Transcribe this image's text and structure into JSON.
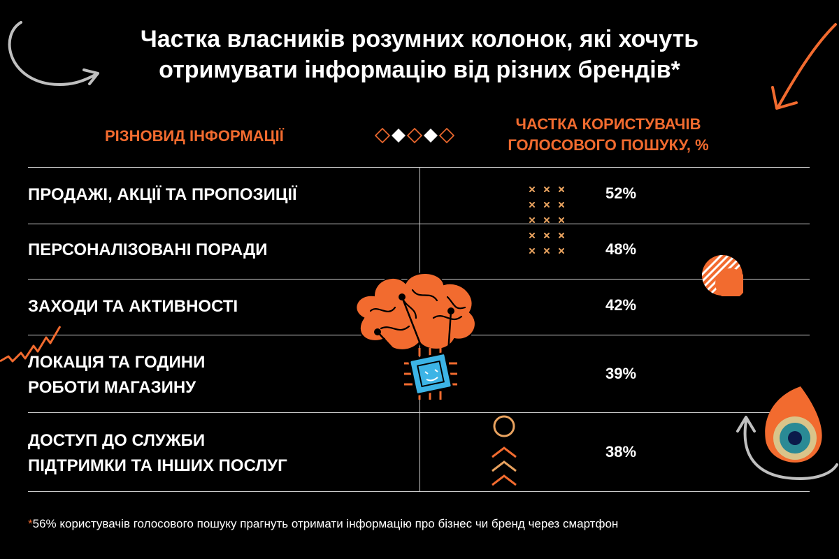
{
  "title_line1": "Частка власників розумних колонок, які хочуть",
  "title_line2": "отримувати інформацію від різних брендів*",
  "colors": {
    "accent": "#f26b2f",
    "background": "#000000",
    "text": "#ffffff",
    "divider": "#cfcfcf"
  },
  "chart_data": {
    "type": "table",
    "column_headers": {
      "category": "РІЗНОВИД ІНФОРМАЦІЇ",
      "value_line1": "ЧАСТКА КОРИСТУВАЧІВ",
      "value_line2": "ГОЛОСОВОГО ПОШУКУ, %"
    },
    "rows": [
      {
        "label_line1": "ПРОДАЖІ, АКЦІЇ ТА ПРОПОЗИЦІЇ",
        "label_line2": "",
        "value": 52,
        "value_label": "52%"
      },
      {
        "label_line1": "ПЕРСОНАЛІЗОВАНІ ПОРАДИ",
        "label_line2": "",
        "value": 48,
        "value_label": "48%"
      },
      {
        "label_line1": "ЗАХОДИ ТА АКТИВНОСТІ",
        "label_line2": "",
        "value": 42,
        "value_label": "42%"
      },
      {
        "label_line1": "ЛОКАЦІЯ ТА ГОДИНИ",
        "label_line2": "РОБОТИ МАГАЗИНУ",
        "value": 39,
        "value_label": "39%"
      },
      {
        "label_line1": "ДОСТУП ДО СЛУЖБИ",
        "label_line2": "ПІДТРИМКИ ТА ІНШИХ ПОСЛУГ",
        "value": 38,
        "value_label": "38%"
      }
    ]
  },
  "footnote_star": "*",
  "footnote_text": "56% користувачів голосового пошуку прагнуть отримати інформацію про бізнес чи бренд через смартфон",
  "decorations": [
    "curved-arrow-icon",
    "orange-arrow-icon",
    "diamond-row-icon",
    "cross-pattern-icon",
    "striped-circle-icon",
    "brain-chip-icon",
    "zigzag-icon",
    "circle-chevrons-icon",
    "eye-drop-icon",
    "curved-gray-arrow-icon"
  ]
}
